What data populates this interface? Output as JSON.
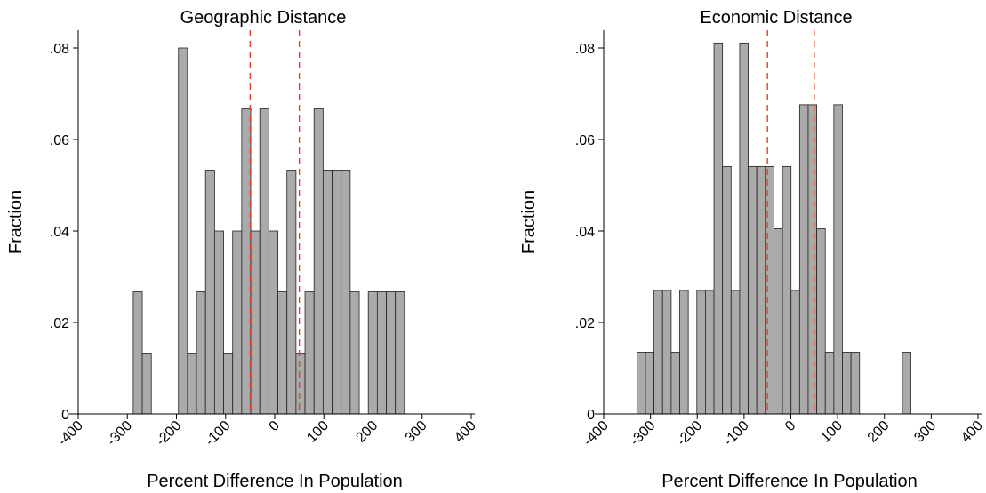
{
  "chart_data": [
    {
      "type": "bar",
      "title": "Geographic Distance",
      "xlabel": "Percent Difference In Population",
      "ylabel": "Fraction",
      "xlim": [
        -400,
        400
      ],
      "ylim": [
        0,
        0.08
      ],
      "x_ticks": [
        "-400",
        "-300",
        "-200",
        "-100",
        "0",
        "100",
        "200",
        "300",
        "400"
      ],
      "y_ticks": [
        "0",
        ".02",
        ".04",
        ".06",
        ".08"
      ],
      "bin_width": 18.4,
      "bins": [
        {
          "x0": -288,
          "value": 0.0267
        },
        {
          "x0": -269.6,
          "value": 0.0133
        },
        {
          "x0": -196,
          "value": 0.08
        },
        {
          "x0": -177.6,
          "value": 0.0133
        },
        {
          "x0": -159.2,
          "value": 0.0267
        },
        {
          "x0": -140.8,
          "value": 0.0533
        },
        {
          "x0": -122.4,
          "value": 0.04
        },
        {
          "x0": -104,
          "value": 0.0133
        },
        {
          "x0": -85.6,
          "value": 0.04
        },
        {
          "x0": -67.2,
          "value": 0.0667
        },
        {
          "x0": -48.8,
          "value": 0.04
        },
        {
          "x0": -30.4,
          "value": 0.0667
        },
        {
          "x0": -12,
          "value": 0.04
        },
        {
          "x0": 6.4,
          "value": 0.0267
        },
        {
          "x0": 24.8,
          "value": 0.0533
        },
        {
          "x0": 43.2,
          "value": 0.0133
        },
        {
          "x0": 61.6,
          "value": 0.0267
        },
        {
          "x0": 80,
          "value": 0.0667
        },
        {
          "x0": 98.4,
          "value": 0.0533
        },
        {
          "x0": 116.8,
          "value": 0.0533
        },
        {
          "x0": 135.2,
          "value": 0.0533
        },
        {
          "x0": 153.6,
          "value": 0.0267
        },
        {
          "x0": 190.4,
          "value": 0.0267
        },
        {
          "x0": 208.8,
          "value": 0.0267
        },
        {
          "x0": 227.2,
          "value": 0.0267
        },
        {
          "x0": 245.6,
          "value": 0.0267
        }
      ],
      "reference_lines": [
        -50,
        50
      ],
      "bar_color": "#aaaaaa",
      "reference_line_color": "#e8402a",
      "grid": false
    },
    {
      "type": "bar",
      "title": "Economic Distance",
      "xlabel": "Percent Difference In Population",
      "ylabel": "Fraction",
      "xlim": [
        -400,
        400
      ],
      "ylim": [
        0,
        0.08
      ],
      "x_ticks": [
        "-400",
        "-300",
        "-200",
        "-100",
        "0",
        "100",
        "200",
        "300",
        "400"
      ],
      "y_ticks": [
        "0",
        ".02",
        ".04",
        ".06",
        ".08"
      ],
      "bin_width": 18.3,
      "bins": [
        {
          "x0": -329,
          "value": 0.0135
        },
        {
          "x0": -310.7,
          "value": 0.0135
        },
        {
          "x0": -292.4,
          "value": 0.027
        },
        {
          "x0": -274.1,
          "value": 0.027
        },
        {
          "x0": -255.8,
          "value": 0.0135
        },
        {
          "x0": -237.5,
          "value": 0.027
        },
        {
          "x0": -200.9,
          "value": 0.027
        },
        {
          "x0": -182.6,
          "value": 0.027
        },
        {
          "x0": -164.3,
          "value": 0.0811
        },
        {
          "x0": -146,
          "value": 0.0541
        },
        {
          "x0": -127.7,
          "value": 0.027
        },
        {
          "x0": -109.4,
          "value": 0.0811
        },
        {
          "x0": -91.1,
          "value": 0.0541
        },
        {
          "x0": -72.8,
          "value": 0.0541
        },
        {
          "x0": -54.5,
          "value": 0.0541
        },
        {
          "x0": -36.2,
          "value": 0.0405
        },
        {
          "x0": -17.9,
          "value": 0.0541
        },
        {
          "x0": 0.4,
          "value": 0.027
        },
        {
          "x0": 18.7,
          "value": 0.0676
        },
        {
          "x0": 37,
          "value": 0.0676
        },
        {
          "x0": 55.3,
          "value": 0.0405
        },
        {
          "x0": 73.6,
          "value": 0.0135
        },
        {
          "x0": 91.9,
          "value": 0.0676
        },
        {
          "x0": 110.2,
          "value": 0.0135
        },
        {
          "x0": 128.5,
          "value": 0.0135
        },
        {
          "x0": 238.3,
          "value": 0.0135
        }
      ],
      "reference_lines": [
        -50,
        50
      ],
      "bar_color": "#aaaaaa",
      "reference_line_color": "#e8402a",
      "grid": false
    }
  ]
}
